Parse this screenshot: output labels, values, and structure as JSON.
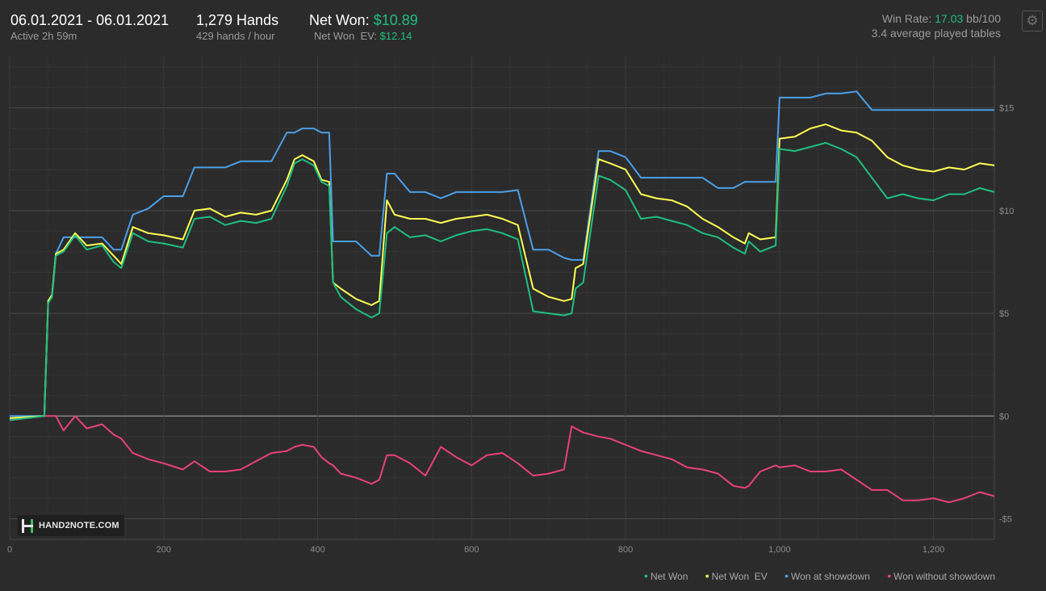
{
  "header": {
    "date_range": "06.01.2021 - 06.01.2021",
    "active": "Active 2h 59m",
    "hands": "1,279 Hands",
    "hands_rate": "429 hands / hour",
    "net_won_label": "Net Won:",
    "net_won_value": "$10.89",
    "net_won_ev_label": "Net Won  EV:",
    "net_won_ev_value": "$12.14",
    "win_rate_label": "Win Rate:",
    "win_rate_value": "17.03",
    "win_rate_unit": "bb/100",
    "tables": "3.4 average played tables",
    "settings_icon": "gear-icon"
  },
  "logo": {
    "text": "HAND2NOTE.COM"
  },
  "chart_data": {
    "type": "line",
    "title": "",
    "xlabel": "",
    "ylabel": "",
    "xlim": [
      0,
      1279
    ],
    "ylim": [
      -6,
      17.5
    ],
    "grid": true,
    "legend_position": "bottom-right",
    "x_ticks": [
      {
        "value": 0,
        "label": "0"
      },
      {
        "value": 200,
        "label": "200"
      },
      {
        "value": 400,
        "label": "400"
      },
      {
        "value": 600,
        "label": "600"
      },
      {
        "value": 800,
        "label": "800"
      },
      {
        "value": 1000,
        "label": "1,000"
      },
      {
        "value": 1200,
        "label": "1,200"
      }
    ],
    "y_ticks": [
      {
        "value": 15,
        "label": "$15"
      },
      {
        "value": 10,
        "label": "$10"
      },
      {
        "value": 5,
        "label": "$5"
      },
      {
        "value": 0,
        "label": "$0"
      },
      {
        "value": -5,
        "label": "-$5"
      }
    ],
    "series": [
      {
        "name": "Net Won",
        "color": "#1fbf7f",
        "x": [
          0,
          45,
          50,
          55,
          60,
          70,
          85,
          100,
          120,
          135,
          145,
          160,
          180,
          200,
          225,
          240,
          260,
          280,
          300,
          320,
          340,
          360,
          370,
          380,
          395,
          405,
          415,
          420,
          430,
          450,
          470,
          480,
          490,
          500,
          520,
          540,
          560,
          580,
          600,
          620,
          640,
          660,
          680,
          700,
          720,
          730,
          735,
          745,
          765,
          780,
          800,
          820,
          840,
          860,
          880,
          900,
          920,
          940,
          955,
          960,
          975,
          995,
          1000,
          1020,
          1040,
          1060,
          1080,
          1100,
          1120,
          1140,
          1160,
          1180,
          1200,
          1220,
          1240,
          1260,
          1279
        ],
        "y": [
          -0.2,
          0.0,
          5.5,
          5.8,
          7.8,
          8.0,
          8.8,
          8.1,
          8.3,
          7.5,
          7.2,
          8.9,
          8.5,
          8.4,
          8.2,
          9.6,
          9.7,
          9.3,
          9.5,
          9.4,
          9.6,
          11.2,
          12.3,
          12.5,
          12.2,
          11.4,
          11.2,
          6.5,
          5.8,
          5.2,
          4.8,
          5.0,
          8.9,
          9.2,
          8.7,
          8.8,
          8.5,
          8.8,
          9.0,
          9.1,
          8.9,
          8.6,
          5.1,
          5.0,
          4.9,
          5.0,
          6.2,
          6.5,
          11.7,
          11.5,
          11.0,
          9.6,
          9.7,
          9.5,
          9.3,
          8.9,
          8.7,
          8.2,
          7.9,
          8.5,
          8.0,
          8.3,
          13.0,
          12.9,
          13.1,
          13.3,
          13.0,
          12.6,
          11.6,
          10.6,
          10.8,
          10.6,
          10.5,
          10.8,
          10.8,
          11.1,
          10.9
        ]
      },
      {
        "name": "Net Won  EV",
        "color": "#ffff55",
        "x": [
          0,
          45,
          50,
          55,
          60,
          70,
          85,
          100,
          120,
          135,
          145,
          160,
          180,
          200,
          225,
          240,
          260,
          280,
          300,
          320,
          340,
          360,
          370,
          380,
          395,
          405,
          415,
          420,
          430,
          450,
          470,
          480,
          490,
          500,
          520,
          540,
          560,
          580,
          600,
          620,
          640,
          660,
          680,
          700,
          720,
          730,
          735,
          745,
          765,
          780,
          800,
          820,
          840,
          860,
          880,
          900,
          920,
          940,
          955,
          960,
          975,
          995,
          1000,
          1020,
          1040,
          1060,
          1080,
          1100,
          1120,
          1140,
          1160,
          1180,
          1200,
          1220,
          1240,
          1260,
          1279
        ],
        "y": [
          -0.1,
          0.0,
          5.6,
          5.9,
          7.9,
          8.1,
          8.9,
          8.3,
          8.4,
          7.8,
          7.4,
          9.2,
          8.9,
          8.8,
          8.6,
          10.0,
          10.1,
          9.7,
          9.9,
          9.8,
          10.0,
          11.5,
          12.5,
          12.7,
          12.4,
          11.5,
          11.4,
          6.5,
          6.2,
          5.7,
          5.4,
          5.6,
          10.5,
          9.8,
          9.6,
          9.6,
          9.4,
          9.6,
          9.7,
          9.8,
          9.6,
          9.3,
          6.2,
          5.8,
          5.6,
          5.7,
          7.2,
          7.4,
          12.5,
          12.3,
          12.0,
          10.8,
          10.6,
          10.5,
          10.2,
          9.6,
          9.2,
          8.7,
          8.4,
          8.9,
          8.6,
          8.7,
          13.5,
          13.6,
          14.0,
          14.2,
          13.9,
          13.8,
          13.4,
          12.6,
          12.2,
          12.0,
          11.9,
          12.1,
          12.0,
          12.3,
          12.2
        ]
      },
      {
        "name": "Won at showdown",
        "color": "#4a9fe8",
        "x": [
          0,
          45,
          50,
          55,
          60,
          70,
          85,
          100,
          120,
          135,
          145,
          160,
          180,
          200,
          225,
          240,
          260,
          280,
          300,
          320,
          340,
          360,
          370,
          380,
          395,
          405,
          415,
          420,
          430,
          450,
          470,
          480,
          490,
          500,
          520,
          540,
          560,
          580,
          600,
          620,
          640,
          660,
          680,
          700,
          720,
          730,
          735,
          745,
          765,
          780,
          800,
          820,
          840,
          860,
          880,
          900,
          920,
          940,
          955,
          960,
          975,
          995,
          1000,
          1020,
          1040,
          1060,
          1080,
          1100,
          1120,
          1140,
          1160,
          1180,
          1200,
          1220,
          1240,
          1260,
          1279
        ],
        "y": [
          0.0,
          0.0,
          5.6,
          5.9,
          7.9,
          8.7,
          8.7,
          8.7,
          8.7,
          8.1,
          8.1,
          9.8,
          10.1,
          10.7,
          10.7,
          12.1,
          12.1,
          12.1,
          12.4,
          12.4,
          12.4,
          13.8,
          13.8,
          14.0,
          14.0,
          13.8,
          13.8,
          8.5,
          8.5,
          8.5,
          7.8,
          7.8,
          11.8,
          11.8,
          10.9,
          10.9,
          10.6,
          10.9,
          10.9,
          10.9,
          10.9,
          11.0,
          8.1,
          8.1,
          7.7,
          7.6,
          7.6,
          7.6,
          12.9,
          12.9,
          12.6,
          11.6,
          11.6,
          11.6,
          11.6,
          11.6,
          11.1,
          11.1,
          11.4,
          11.4,
          11.4,
          11.4,
          15.5,
          15.5,
          15.5,
          15.7,
          15.7,
          15.8,
          14.9,
          14.9,
          14.9,
          14.9,
          14.9,
          14.9,
          14.9,
          14.9,
          14.9
        ]
      },
      {
        "name": "Won without showdown",
        "color": "#e8417a",
        "x": [
          0,
          45,
          50,
          55,
          60,
          70,
          85,
          100,
          120,
          135,
          145,
          160,
          180,
          200,
          225,
          240,
          260,
          280,
          300,
          320,
          340,
          360,
          370,
          380,
          395,
          405,
          415,
          420,
          430,
          450,
          470,
          480,
          490,
          500,
          520,
          540,
          560,
          580,
          600,
          620,
          640,
          660,
          680,
          700,
          720,
          730,
          735,
          745,
          765,
          780,
          800,
          820,
          840,
          860,
          880,
          900,
          920,
          940,
          955,
          960,
          975,
          995,
          1000,
          1020,
          1040,
          1060,
          1080,
          1100,
          1120,
          1140,
          1160,
          1180,
          1200,
          1220,
          1240,
          1260,
          1279
        ],
        "y": [
          -0.2,
          0.0,
          0.0,
          0.0,
          0.0,
          -0.7,
          0.0,
          -0.6,
          -0.4,
          -0.9,
          -1.1,
          -1.8,
          -2.1,
          -2.3,
          -2.6,
          -2.2,
          -2.7,
          -2.7,
          -2.6,
          -2.2,
          -1.8,
          -1.7,
          -1.5,
          -1.4,
          -1.5,
          -2.0,
          -2.3,
          -2.4,
          -2.8,
          -3.0,
          -3.3,
          -3.1,
          -1.9,
          -1.9,
          -2.3,
          -2.9,
          -1.5,
          -2.0,
          -2.4,
          -1.9,
          -1.8,
          -2.3,
          -2.9,
          -2.8,
          -2.6,
          -0.5,
          -0.6,
          -0.8,
          -1.0,
          -1.1,
          -1.4,
          -1.7,
          -1.9,
          -2.1,
          -2.5,
          -2.6,
          -2.8,
          -3.4,
          -3.5,
          -3.4,
          -2.7,
          -2.4,
          -2.5,
          -2.4,
          -2.7,
          -2.7,
          -2.6,
          -3.1,
          -3.6,
          -3.6,
          -4.1,
          -4.1,
          -4.0,
          -4.2,
          -4.0,
          -3.7,
          -3.9
        ]
      }
    ]
  }
}
